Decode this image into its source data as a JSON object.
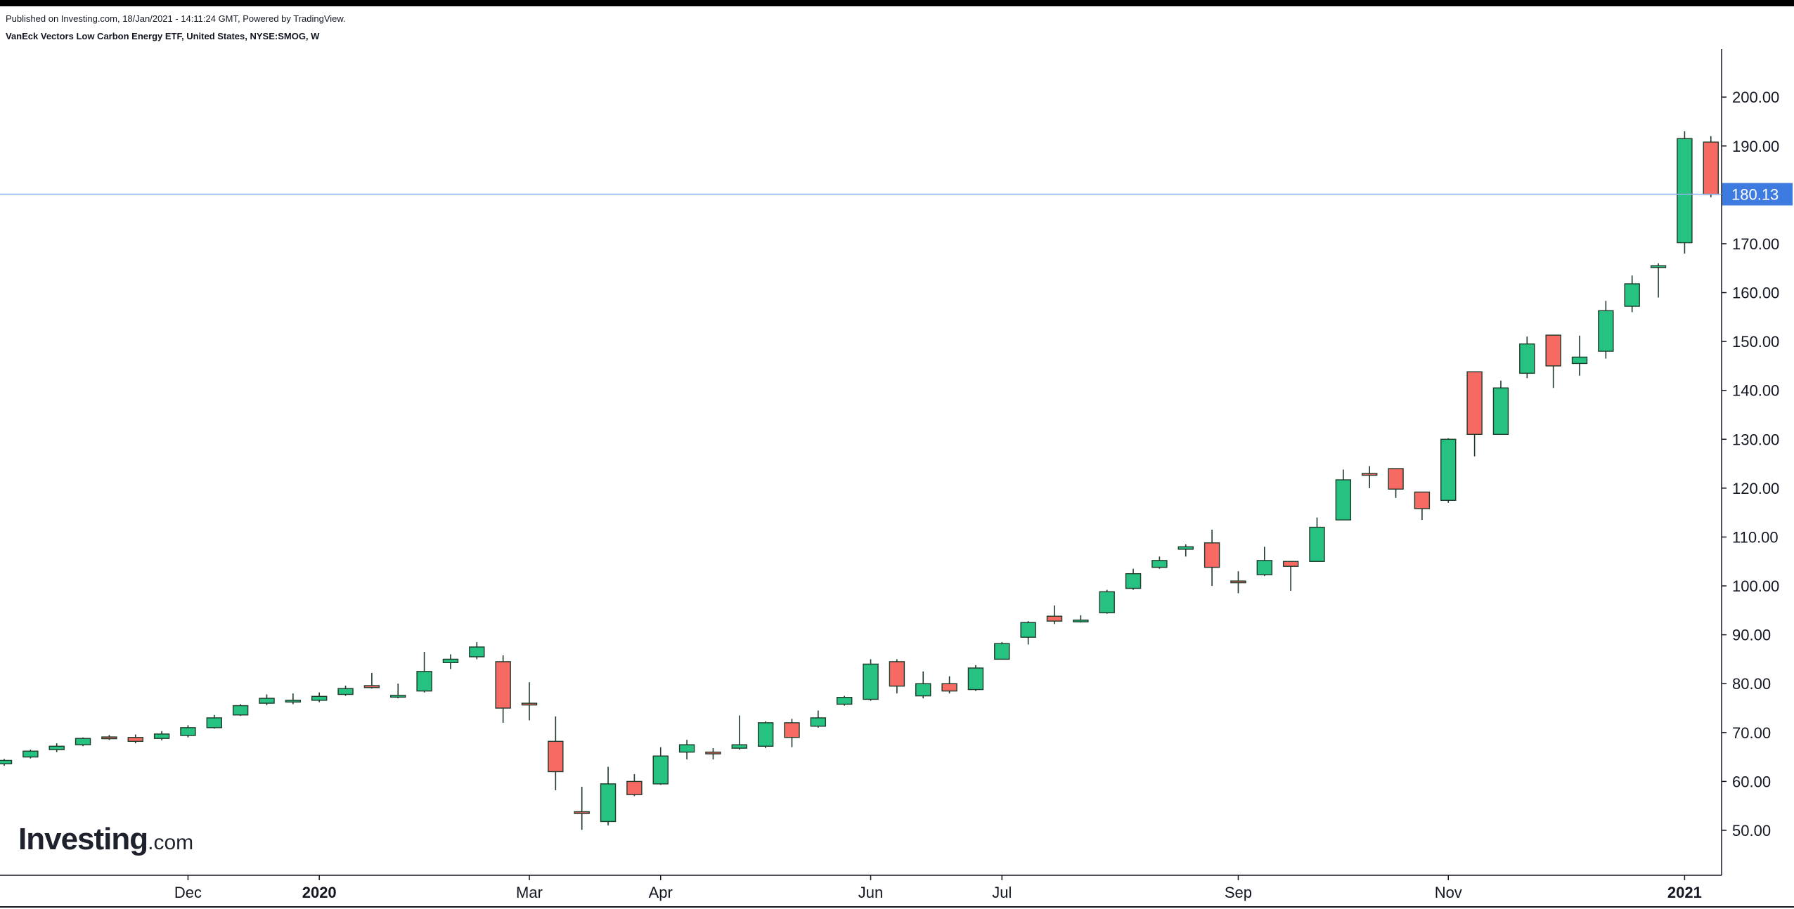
{
  "header": {
    "published_line": "Published on Investing.com, 18/Jan/2021 - 14:11:24 GMT, Powered by TradingView.",
    "symbol_line": "VanEck Vectors Low Carbon Energy ETF, United States, NYSE:SMOG, W"
  },
  "logo": {
    "brand": "Investing",
    "suffix": ".com"
  },
  "colors": {
    "up": "#26c281",
    "down": "#f76a64",
    "outline": "#1e3a2a",
    "axis": "#131722",
    "price_line": "#90b4f0",
    "price_badge": "#3d7be0"
  },
  "chart_data": {
    "type": "candlestick",
    "title": "VanEck Vectors Low Carbon Energy ETF, United States, NYSE:SMOG, W",
    "interval": "W",
    "y_axis": {
      "position": "right",
      "ylim": [
        40.8,
        209.8
      ],
      "ticks": [
        "50.00",
        "60.00",
        "70.00",
        "80.00",
        "90.00",
        "100.00",
        "110.00",
        "120.00",
        "130.00",
        "140.00",
        "150.00",
        "160.00",
        "170.00",
        "180.00",
        "190.00",
        "200.00"
      ]
    },
    "x_axis": {
      "labels": [
        {
          "text": "Dec",
          "bar": 7,
          "bold": false
        },
        {
          "text": "2020",
          "bar": 12,
          "bold": true
        },
        {
          "text": "Mar",
          "bar": 20,
          "bold": false
        },
        {
          "text": "Apr",
          "bar": 25,
          "bold": false
        },
        {
          "text": "Jun",
          "bar": 33,
          "bold": false
        },
        {
          "text": "Jul",
          "bar": 38,
          "bold": false
        },
        {
          "text": "Sep",
          "bar": 47,
          "bold": false
        },
        {
          "text": "Nov",
          "bar": 55,
          "bold": false
        },
        {
          "text": "2021",
          "bar": 64,
          "bold": true
        }
      ]
    },
    "last_price": {
      "value": 180.13,
      "label": "180.13"
    },
    "grid": false,
    "candles": [
      {
        "o": 63.6,
        "h": 64.6,
        "l": 63.2,
        "c": 64.3
      },
      {
        "o": 65.0,
        "h": 66.5,
        "l": 64.7,
        "c": 66.2
      },
      {
        "o": 66.5,
        "h": 67.8,
        "l": 66.0,
        "c": 67.2
      },
      {
        "o": 67.5,
        "h": 69.0,
        "l": 67.2,
        "c": 68.8
      },
      {
        "o": 69.1,
        "h": 69.5,
        "l": 68.5,
        "c": 68.8
      },
      {
        "o": 69.0,
        "h": 69.6,
        "l": 67.8,
        "c": 68.2
      },
      {
        "o": 68.8,
        "h": 70.3,
        "l": 68.4,
        "c": 69.7
      },
      {
        "o": 69.4,
        "h": 71.5,
        "l": 69.0,
        "c": 71.0
      },
      {
        "o": 71.0,
        "h": 73.6,
        "l": 70.8,
        "c": 73.0
      },
      {
        "o": 73.6,
        "h": 75.8,
        "l": 73.4,
        "c": 75.5
      },
      {
        "o": 76.0,
        "h": 77.8,
        "l": 75.6,
        "c": 77.0
      },
      {
        "o": 76.5,
        "h": 78.0,
        "l": 75.8,
        "c": 76.6
      },
      {
        "o": 76.6,
        "h": 78.2,
        "l": 76.2,
        "c": 77.4
      },
      {
        "o": 77.8,
        "h": 79.6,
        "l": 77.5,
        "c": 79.0
      },
      {
        "o": 79.6,
        "h": 82.2,
        "l": 79.0,
        "c": 79.2
      },
      {
        "o": 77.5,
        "h": 80.0,
        "l": 77.0,
        "c": 77.6
      },
      {
        "o": 78.5,
        "h": 86.5,
        "l": 78.2,
        "c": 82.5
      },
      {
        "o": 84.3,
        "h": 86.0,
        "l": 83.0,
        "c": 85.0
      },
      {
        "o": 85.5,
        "h": 88.5,
        "l": 85.0,
        "c": 87.5
      },
      {
        "o": 84.5,
        "h": 85.8,
        "l": 72.0,
        "c": 75.0
      },
      {
        "o": 76.0,
        "h": 80.3,
        "l": 72.5,
        "c": 75.8
      },
      {
        "o": 68.2,
        "h": 73.3,
        "l": 58.2,
        "c": 62.0
      },
      {
        "o": 53.8,
        "h": 58.9,
        "l": 50.1,
        "c": 53.6
      },
      {
        "o": 51.8,
        "h": 63.0,
        "l": 51.0,
        "c": 59.5
      },
      {
        "o": 60.0,
        "h": 61.5,
        "l": 57.0,
        "c": 57.3
      },
      {
        "o": 59.5,
        "h": 67.0,
        "l": 59.3,
        "c": 65.2
      },
      {
        "o": 66.0,
        "h": 68.5,
        "l": 64.5,
        "c": 67.5
      },
      {
        "o": 66.0,
        "h": 66.8,
        "l": 64.5,
        "c": 65.8
      },
      {
        "o": 66.8,
        "h": 73.5,
        "l": 66.5,
        "c": 67.5
      },
      {
        "o": 67.2,
        "h": 72.3,
        "l": 66.8,
        "c": 72.0
      },
      {
        "o": 72.0,
        "h": 72.8,
        "l": 67.0,
        "c": 69.0
      },
      {
        "o": 71.3,
        "h": 74.5,
        "l": 71.0,
        "c": 73.0
      },
      {
        "o": 75.8,
        "h": 77.5,
        "l": 75.5,
        "c": 77.2
      },
      {
        "o": 76.8,
        "h": 85.0,
        "l": 76.5,
        "c": 84.0
      },
      {
        "o": 84.5,
        "h": 85.0,
        "l": 78.0,
        "c": 79.5
      },
      {
        "o": 77.5,
        "h": 82.5,
        "l": 77.0,
        "c": 80.0
      },
      {
        "o": 80.0,
        "h": 81.5,
        "l": 78.0,
        "c": 78.5
      },
      {
        "o": 78.8,
        "h": 83.8,
        "l": 78.5,
        "c": 83.2
      },
      {
        "o": 85.0,
        "h": 88.5,
        "l": 85.0,
        "c": 88.2
      },
      {
        "o": 89.5,
        "h": 92.8,
        "l": 88.0,
        "c": 92.5
      },
      {
        "o": 93.8,
        "h": 96.0,
        "l": 92.2,
        "c": 92.8
      },
      {
        "o": 93.0,
        "h": 94.0,
        "l": 92.5,
        "c": 93.0
      },
      {
        "o": 94.5,
        "h": 99.2,
        "l": 94.3,
        "c": 98.8
      },
      {
        "o": 99.5,
        "h": 103.5,
        "l": 99.2,
        "c": 102.5
      },
      {
        "o": 103.8,
        "h": 106.0,
        "l": 103.5,
        "c": 105.2
      },
      {
        "o": 107.5,
        "h": 108.5,
        "l": 106.0,
        "c": 108.0
      },
      {
        "o": 108.8,
        "h": 111.5,
        "l": 100.0,
        "c": 103.8
      },
      {
        "o": 101.0,
        "h": 103.0,
        "l": 98.5,
        "c": 100.8
      },
      {
        "o": 102.3,
        "h": 108.0,
        "l": 102.0,
        "c": 105.2
      },
      {
        "o": 105.0,
        "h": 105.0,
        "l": 99.0,
        "c": 104.0
      },
      {
        "o": 105.0,
        "h": 114.0,
        "l": 105.0,
        "c": 112.0
      },
      {
        "o": 113.5,
        "h": 123.8,
        "l": 113.5,
        "c": 121.7
      },
      {
        "o": 123.0,
        "h": 124.5,
        "l": 120.0,
        "c": 122.7
      },
      {
        "o": 124.0,
        "h": 124.0,
        "l": 118.0,
        "c": 119.8
      },
      {
        "o": 119.2,
        "h": 119.2,
        "l": 113.5,
        "c": 115.8
      },
      {
        "o": 117.5,
        "h": 130.2,
        "l": 117.0,
        "c": 130.0
      },
      {
        "o": 143.8,
        "h": 143.8,
        "l": 126.5,
        "c": 131.0
      },
      {
        "o": 131.0,
        "h": 142.0,
        "l": 131.0,
        "c": 140.5
      },
      {
        "o": 143.5,
        "h": 151.0,
        "l": 142.5,
        "c": 149.5
      },
      {
        "o": 151.3,
        "h": 151.3,
        "l": 140.5,
        "c": 145.0
      },
      {
        "o": 145.5,
        "h": 151.2,
        "l": 143.0,
        "c": 146.8
      },
      {
        "o": 148.0,
        "h": 158.3,
        "l": 146.5,
        "c": 156.3
      },
      {
        "o": 157.2,
        "h": 163.5,
        "l": 156.0,
        "c": 161.8
      },
      {
        "o": 165.2,
        "h": 166.0,
        "l": 159.0,
        "c": 165.5
      },
      {
        "o": 170.2,
        "h": 193.0,
        "l": 168.0,
        "c": 191.5
      },
      {
        "o": 190.8,
        "h": 192.0,
        "l": 179.5,
        "c": 180.1
      }
    ]
  }
}
